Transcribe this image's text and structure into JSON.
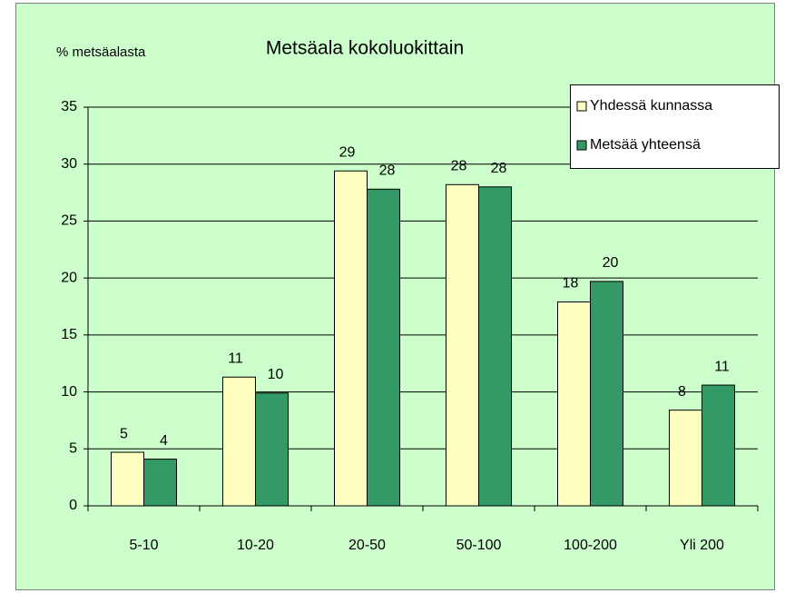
{
  "chart_data": {
    "type": "bar",
    "title": "Metsäala kokoluokittain",
    "y_label": "% metsäalasta",
    "categories": [
      "5-10",
      "10-20",
      "20-50",
      "50-100",
      "100-200",
      "Yli 200"
    ],
    "series": [
      {
        "name": "Yhdessä kunnassa",
        "color": "#ffffc0",
        "values": [
          4.7,
          11.3,
          29.4,
          28.2,
          17.9,
          8.4
        ],
        "value_labels": [
          "5",
          "11",
          "29",
          "28",
          "18",
          "8"
        ]
      },
      {
        "name": "Metsää yhteensä",
        "color": "#339966",
        "values": [
          4.1,
          9.9,
          27.8,
          28.0,
          19.7,
          10.6
        ],
        "value_labels": [
          "4",
          "10",
          "28",
          "28",
          "20",
          "11"
        ]
      }
    ],
    "ylim": [
      0,
      35
    ],
    "yticks": [
      0,
      5,
      10,
      15,
      20,
      25,
      30,
      35
    ],
    "grid": true,
    "legend": "top-right"
  }
}
